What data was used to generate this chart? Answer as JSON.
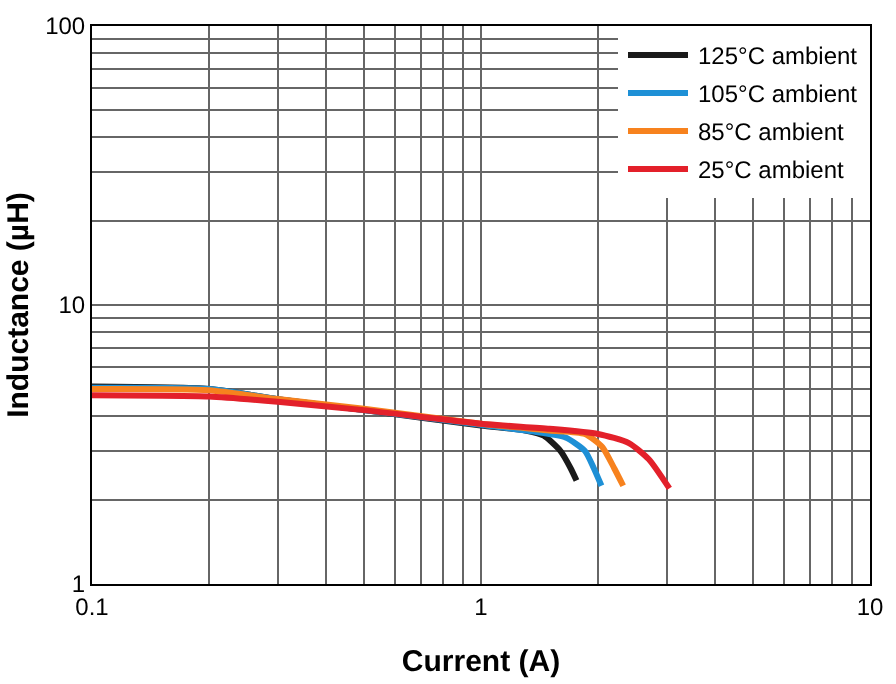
{
  "chart_data": {
    "type": "line",
    "xlabel": "Current (A)",
    "ylabel": "Inductance (µH)",
    "log": "xy",
    "grid": true,
    "legend": "top right",
    "marker": "none",
    "line_style": "solid",
    "xlim": [
      0.1,
      10
    ],
    "ylim": [
      1,
      100
    ],
    "xticks": [
      0.1,
      {
        "value": 0.2,
        "label": null
      },
      {
        "value": 0.3,
        "label": null
      },
      {
        "value": 0.4,
        "label": null
      },
      {
        "value": 0.5,
        "label": null
      },
      {
        "value": 0.6,
        "label": null
      },
      {
        "value": 0.7,
        "label": null
      },
      {
        "value": 0.8,
        "label": null
      },
      {
        "value": 0.9,
        "label": null
      },
      1,
      {
        "value": 2,
        "label": null
      },
      {
        "value": 3,
        "label": null
      },
      {
        "value": 4,
        "label": null
      },
      {
        "value": 5,
        "label": null
      },
      {
        "value": 6,
        "label": null
      },
      {
        "value": 7,
        "label": null
      },
      {
        "value": 8,
        "label": null
      },
      {
        "value": 9,
        "label": null
      },
      10
    ],
    "yticks": [
      1,
      {
        "value": 2,
        "label": null
      },
      {
        "value": 3,
        "label": null
      },
      {
        "value": 4,
        "label": null
      },
      {
        "value": 5,
        "label": null
      },
      {
        "value": 6,
        "label": null
      },
      {
        "value": 7,
        "label": null
      },
      {
        "value": 8,
        "label": null
      },
      {
        "value": 9,
        "label": null
      },
      10,
      {
        "value": 20,
        "label": null
      },
      {
        "value": 30,
        "label": null
      },
      {
        "value": 40,
        "label": null
      },
      {
        "value": 50,
        "label": null
      },
      {
        "value": 60,
        "label": null
      },
      {
        "value": 70,
        "label": null
      },
      {
        "value": 80,
        "label": null
      },
      {
        "value": 90,
        "label": null
      },
      100
    ],
    "series": [
      {
        "name": "125°C ambient",
        "color": "#1a1a1a",
        "x": [
          0.1,
          0.2,
          0.3,
          0.5,
          1,
          1.3,
          1.45,
          1.6,
          1.7,
          1.76
        ],
        "values": [
          5.1,
          5.0,
          4.6,
          4.2,
          3.7,
          3.55,
          3.4,
          3.0,
          2.6,
          2.35
        ]
      },
      {
        "name": "105°C ambient",
        "color": "#1e90d6",
        "x": [
          0.1,
          0.2,
          0.3,
          0.5,
          1,
          1.4,
          1.65,
          1.85,
          1.95,
          2.04
        ],
        "values": [
          5.05,
          5.0,
          4.6,
          4.2,
          3.72,
          3.5,
          3.35,
          3.0,
          2.6,
          2.25
        ]
      },
      {
        "name": "85°C ambient",
        "color": "#f7821e",
        "x": [
          0.1,
          0.2,
          0.3,
          0.5,
          1,
          1.5,
          1.85,
          2.05,
          2.2,
          2.32
        ],
        "values": [
          5.0,
          4.95,
          4.6,
          4.25,
          3.75,
          3.55,
          3.45,
          3.1,
          2.6,
          2.25
        ]
      },
      {
        "name": "25°C ambient",
        "color": "#e3202a",
        "x": [
          0.1,
          0.2,
          0.3,
          0.5,
          1,
          1.5,
          2,
          2.4,
          2.7,
          3.05
        ],
        "values": [
          4.75,
          4.7,
          4.5,
          4.2,
          3.75,
          3.6,
          3.45,
          3.2,
          2.8,
          2.2
        ]
      }
    ]
  }
}
